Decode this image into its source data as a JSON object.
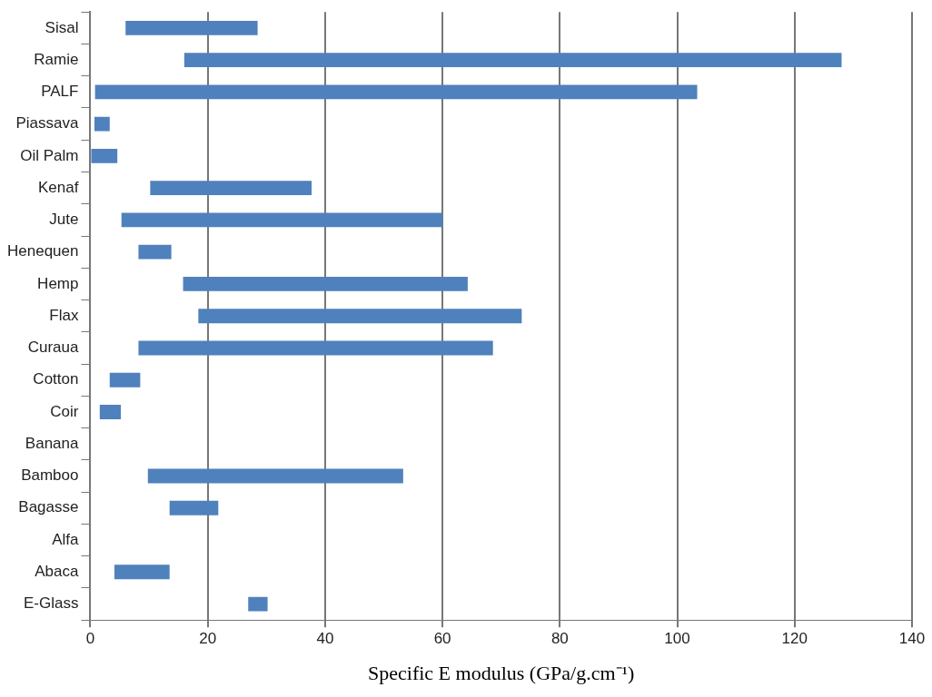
{
  "chart_data": {
    "type": "bar",
    "orientation": "horizontal",
    "xlabel": "Specific E modulus (GPa/g.cm⁻¹)",
    "categories": [
      "Sisal",
      "Ramie",
      "PALF",
      "Piassava",
      "Oil Palm",
      "Kenaf",
      "Jute",
      "Henequen",
      "Hemp",
      "Flax",
      "Curaua",
      "Cotton",
      "Coir",
      "Banana",
      "Bamboo",
      "Bagasse",
      "Alfa",
      "Abaca",
      "E-Glass"
    ],
    "base": [
      6,
      16,
      0.8,
      0.7,
      0,
      10.2,
      5.3,
      8.2,
      15.8,
      18.4,
      8.2,
      3.3,
      1.6,
      null,
      9.8,
      13.5,
      null,
      4.1,
      26.9
    ],
    "values": [
      22.5,
      112,
      102.6,
      2.6,
      4.6,
      27.5,
      54.7,
      5.6,
      48.5,
      55.1,
      60.4,
      5.2,
      3.6,
      null,
      43.5,
      8.3,
      null,
      9.4,
      3.3
    ],
    "color": "#4f81bd",
    "xlim": [
      0,
      140
    ],
    "xticks": [
      0,
      20,
      40,
      60,
      80,
      100,
      120,
      140
    ],
    "grid": "x"
  }
}
